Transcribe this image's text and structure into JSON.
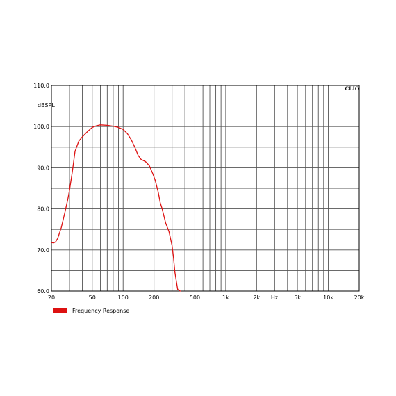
{
  "chart_data": {
    "type": "line",
    "title": "",
    "brand_label": "CLIO",
    "ylabel": "dBSPL",
    "x_unit_label": "Hz",
    "x_scale": "log",
    "xlim": [
      20,
      20000
    ],
    "ylim": [
      60,
      110
    ],
    "grid": true,
    "legend_position": "bottom-left",
    "x_tick_labels": [
      {
        "value": 20,
        "label": "20"
      },
      {
        "value": 50,
        "label": "50"
      },
      {
        "value": 100,
        "label": "100"
      },
      {
        "value": 200,
        "label": "200"
      },
      {
        "value": 500,
        "label": "500"
      },
      {
        "value": 1000,
        "label": "1k"
      },
      {
        "value": 2000,
        "label": "2k"
      },
      {
        "value": 5000,
        "label": "5k"
      },
      {
        "value": 10000,
        "label": "10k"
      },
      {
        "value": 20000,
        "label": "20k"
      }
    ],
    "y_tick_labels": [
      {
        "value": 110,
        "label": "110.0"
      },
      {
        "value": 100,
        "label": "100.0"
      },
      {
        "value": 90,
        "label": "90.0"
      },
      {
        "value": 80,
        "label": "80.0"
      },
      {
        "value": 70,
        "label": "70.0"
      },
      {
        "value": 60,
        "label": "60.0"
      }
    ],
    "x_minor_grid": [
      20,
      30,
      40,
      50,
      60,
      70,
      80,
      90,
      100,
      200,
      300,
      400,
      500,
      600,
      700,
      800,
      900,
      1000,
      2000,
      3000,
      4000,
      5000,
      6000,
      7000,
      8000,
      9000,
      10000,
      20000
    ],
    "y_grid": [
      60,
      65,
      70,
      75,
      80,
      85,
      90,
      95,
      100,
      105,
      110
    ],
    "series": [
      {
        "name": "Frequency Response",
        "color": "#dd1111",
        "x": [
          20,
          21,
          22,
          23,
          25,
          27,
          29,
          30,
          32,
          34,
          37,
          40,
          45,
          50,
          55,
          60,
          70,
          80,
          90,
          100,
          110,
          120,
          130,
          140,
          150,
          165,
          180,
          195,
          205,
          220,
          230,
          240,
          260,
          280,
          300,
          310,
          320,
          340,
          360
        ],
        "y": [
          71.8,
          71.7,
          72.0,
          72.8,
          75.5,
          79.0,
          82.5,
          84.5,
          89.0,
          94.0,
          96.5,
          97.5,
          98.8,
          99.8,
          100.2,
          100.4,
          100.3,
          100.1,
          99.8,
          99.3,
          98.3,
          96.8,
          95.0,
          93.0,
          92.0,
          91.5,
          90.5,
          88.5,
          87.0,
          84.0,
          81.5,
          80.0,
          76.5,
          74.5,
          71.0,
          68.0,
          64.5,
          60.4,
          60.0
        ]
      }
    ]
  }
}
